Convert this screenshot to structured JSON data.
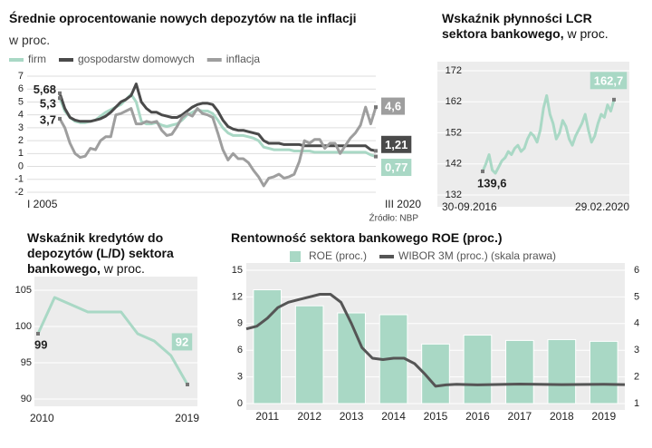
{
  "chart_data": [
    {
      "type": "line",
      "title": "Średnie oprocentowanie nowych depozytów na tle inflacji",
      "subtitle": "w proc.",
      "source": "Źródło: NBP",
      "categories": [
        "I 2005",
        null,
        null,
        null,
        null,
        null,
        null,
        null,
        null,
        null,
        null,
        null,
        null,
        null,
        null,
        null,
        null,
        null,
        null,
        null,
        null,
        null,
        null,
        null,
        null,
        null,
        null,
        null,
        null,
        null,
        null,
        null,
        null,
        null,
        null,
        null,
        null,
        null,
        null,
        null,
        null,
        null,
        null,
        null,
        null,
        null,
        null,
        null,
        null,
        null,
        null,
        null,
        null,
        null,
        null,
        null,
        null,
        null,
        null,
        null,
        null,
        null,
        "III 2020"
      ],
      "ylim": [
        -2,
        7
      ],
      "yticks": [
        -2,
        -1,
        0,
        1,
        2,
        3,
        4,
        5,
        6,
        7
      ],
      "grid": true,
      "series": [
        {
          "name": "firm",
          "color": "#a9d8c5",
          "values": [
            5.3,
            4.3,
            3.8,
            3.5,
            3.4,
            3.4,
            3.5,
            3.6,
            3.9,
            4.2,
            4.4,
            4.6,
            4.8,
            5.2,
            5.6,
            5.0,
            3.5,
            3.3,
            3.3,
            3.4,
            3.2,
            3.1,
            3.2,
            3.3,
            3.6,
            4.0,
            4.2,
            4.4,
            4.3,
            4.3,
            4.1,
            3.6,
            3.0,
            2.6,
            2.4,
            2.4,
            2.4,
            2.3,
            2.2,
            2.0,
            1.5,
            1.4,
            1.3,
            1.3,
            1.3,
            1.3,
            1.2,
            1.2,
            1.2,
            1.2,
            1.1,
            1.1,
            1.1,
            1.1,
            1.1,
            1.1,
            1.1,
            1.1,
            1.1,
            1.1,
            1.1,
            0.9,
            0.77
          ],
          "value_labels": [
            "5,3",
            null,
            null,
            null,
            null,
            null,
            null,
            null,
            null,
            null,
            null,
            null,
            null,
            null,
            null,
            null,
            null,
            null,
            null,
            null,
            null,
            null,
            null,
            null,
            null,
            null,
            null,
            null,
            null,
            null,
            null,
            null,
            null,
            null,
            null,
            null,
            null,
            null,
            null,
            null,
            null,
            null,
            null,
            null,
            null,
            null,
            null,
            null,
            null,
            null,
            null,
            null,
            null,
            null,
            null,
            null,
            null,
            null,
            null,
            null,
            null,
            null,
            "0,77"
          ]
        },
        {
          "name": "gospodarstw domowych",
          "color": "#4a4a4a",
          "values": [
            5.68,
            4.5,
            3.8,
            3.6,
            3.5,
            3.5,
            3.5,
            3.6,
            3.7,
            3.9,
            4.2,
            4.6,
            5.0,
            5.2,
            5.5,
            6.4,
            5.0,
            4.5,
            4.2,
            4.2,
            4.0,
            3.9,
            3.8,
            3.8,
            4.0,
            4.3,
            4.6,
            4.8,
            4.9,
            4.9,
            4.8,
            4.3,
            3.6,
            3.1,
            2.9,
            2.8,
            2.8,
            2.7,
            2.6,
            2.5,
            2.0,
            1.8,
            1.8,
            1.8,
            1.7,
            1.7,
            1.7,
            1.7,
            1.6,
            1.6,
            1.6,
            1.6,
            1.6,
            1.6,
            1.6,
            1.6,
            1.6,
            1.6,
            1.6,
            1.6,
            1.6,
            1.3,
            1.21
          ],
          "value_labels": [
            "5,68",
            null,
            null,
            null,
            null,
            null,
            null,
            null,
            null,
            null,
            null,
            null,
            null,
            null,
            null,
            null,
            null,
            null,
            null,
            null,
            null,
            null,
            null,
            null,
            null,
            null,
            null,
            null,
            null,
            null,
            null,
            null,
            null,
            null,
            null,
            null,
            null,
            null,
            null,
            null,
            null,
            null,
            null,
            null,
            null,
            null,
            null,
            null,
            null,
            null,
            null,
            null,
            null,
            null,
            null,
            null,
            null,
            null,
            null,
            null,
            null,
            null,
            "1,21"
          ]
        },
        {
          "name": "inflacja",
          "color": "#9e9e9e",
          "values": [
            3.7,
            3.0,
            1.8,
            1.0,
            0.7,
            0.8,
            1.4,
            1.3,
            2.0,
            2.3,
            2.3,
            4.0,
            4.1,
            4.3,
            4.5,
            3.3,
            3.3,
            3.5,
            3.4,
            3.5,
            2.8,
            2.4,
            2.5,
            3.1,
            3.8,
            4.1,
            3.9,
            4.5,
            4.1,
            4.0,
            3.8,
            2.6,
            1.3,
            0.5,
            1.0,
            0.6,
            0.6,
            0.3,
            -0.3,
            -0.8,
            -1.5,
            -0.9,
            -0.8,
            -0.6,
            -0.9,
            -0.8,
            -0.6,
            0.4,
            2.0,
            1.8,
            2.1,
            2.1,
            1.4,
            1.8,
            1.8,
            1.0,
            1.6,
            2.2,
            2.6,
            3.2,
            4.6,
            3.3,
            4.6
          ],
          "value_labels": [
            "3,7",
            null,
            null,
            null,
            null,
            null,
            null,
            null,
            null,
            null,
            null,
            null,
            null,
            null,
            null,
            null,
            null,
            null,
            null,
            null,
            null,
            null,
            null,
            null,
            null,
            null,
            null,
            null,
            null,
            null,
            null,
            null,
            null,
            null,
            null,
            null,
            null,
            null,
            null,
            null,
            null,
            null,
            null,
            null,
            null,
            null,
            null,
            null,
            null,
            null,
            null,
            null,
            null,
            null,
            null,
            null,
            null,
            null,
            null,
            null,
            null,
            null,
            "4,6"
          ]
        }
      ]
    },
    {
      "type": "line",
      "title": "Wskaźnik płynności LCR sektora bankowego,",
      "unit": "w proc.",
      "categories": [
        "30-09.2016",
        null,
        null,
        null,
        null,
        null,
        null,
        null,
        null,
        null,
        null,
        null,
        null,
        null,
        null,
        null,
        null,
        null,
        null,
        null,
        null,
        null,
        null,
        null,
        null,
        null,
        null,
        null,
        null,
        null,
        null,
        null,
        null,
        null,
        null,
        null,
        null,
        null,
        null,
        null,
        null,
        "29.02.2020"
      ],
      "ylim": [
        132,
        172
      ],
      "yticks": [
        132,
        142,
        152,
        162,
        172
      ],
      "grid": true,
      "series": [
        {
          "name": "LCR",
          "color": "#a9d8c5",
          "values": [
            139.6,
            142,
            145,
            140,
            139,
            141,
            143,
            144,
            146,
            145,
            147,
            148,
            146,
            147,
            150,
            152,
            151,
            149,
            153,
            160,
            164,
            158,
            155,
            150,
            152,
            156,
            154,
            150,
            148,
            151,
            153,
            155,
            158,
            153,
            149,
            151,
            155,
            158,
            157,
            161,
            159,
            162.7
          ],
          "value_labels": [
            "139,6",
            null,
            null,
            null,
            null,
            null,
            null,
            null,
            null,
            null,
            null,
            null,
            null,
            null,
            null,
            null,
            null,
            null,
            null,
            null,
            null,
            null,
            null,
            null,
            null,
            null,
            null,
            null,
            null,
            null,
            null,
            null,
            null,
            null,
            null,
            null,
            null,
            null,
            null,
            null,
            null,
            "162,7"
          ]
        }
      ]
    },
    {
      "type": "line",
      "title": "Wskaźnik kredytów do depozytów (L/D) sektora bankowego,",
      "unit": "w proc.",
      "categories": [
        "2010",
        null,
        null,
        null,
        null,
        null,
        null,
        null,
        null,
        "2019"
      ],
      "ylim": [
        90,
        105
      ],
      "yticks": [
        90,
        95,
        100,
        105
      ],
      "grid": true,
      "series": [
        {
          "name": "L/D",
          "color": "#a9d8c5",
          "values": [
            99,
            104,
            103,
            102,
            102,
            102,
            99,
            98,
            96,
            92
          ]
        }
      ]
    },
    {
      "type": "bar",
      "title": "Rentowność sektora bankowego ROE (proc.)",
      "categories": [
        "2011",
        "2012",
        "2013",
        "2014",
        "2015",
        "2016",
        "2017",
        "2018",
        "2019"
      ],
      "ylim": [
        0,
        15
      ],
      "yticks": [
        0,
        3,
        6,
        9,
        12,
        15
      ],
      "y2lim": [
        1,
        6
      ],
      "y2ticks": [
        1,
        2,
        3,
        4,
        5,
        6
      ],
      "xlim": [
        2010.5,
        2019.5
      ],
      "grid": true,
      "series": [
        {
          "name": "ROE (proc.)",
          "color": "#a9d8c5",
          "values": [
            12.8,
            11.0,
            10.2,
            10.0,
            6.7,
            7.7,
            7.1,
            7.2,
            7.0
          ]
        },
        {
          "name": "WIBOR 3M (proc.) (skala prawa)",
          "type": "line",
          "axis": "y2",
          "color": "#555555",
          "x": [
            2010.5,
            2010.75,
            2011,
            2011.25,
            2011.5,
            2011.75,
            2012,
            2012.25,
            2012.5,
            2012.75,
            2013,
            2013.25,
            2013.5,
            2013.75,
            2014,
            2014.25,
            2014.5,
            2014.75,
            2015,
            2015.25,
            2015.5,
            2016,
            2017,
            2018,
            2019,
            2019.5
          ],
          "values": [
            3.8,
            3.9,
            4.2,
            4.6,
            4.8,
            4.9,
            5.0,
            5.1,
            5.1,
            4.8,
            4.0,
            3.1,
            2.7,
            2.65,
            2.7,
            2.7,
            2.5,
            2.1,
            1.65,
            1.7,
            1.72,
            1.7,
            1.73,
            1.71,
            1.72,
            1.71
          ]
        }
      ]
    }
  ]
}
